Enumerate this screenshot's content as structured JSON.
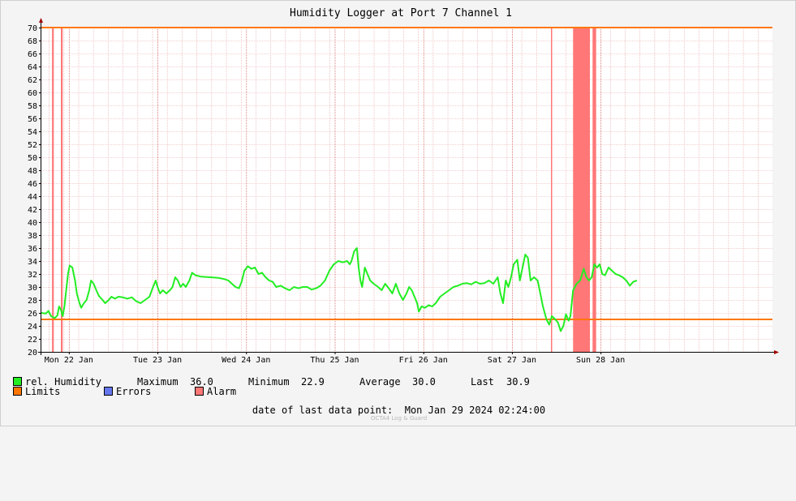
{
  "chart_data": {
    "type": "line",
    "title": "Humidity Logger at Port 7 Channel 1",
    "ylim": [
      20,
      70
    ],
    "y_ticks": [
      20,
      22,
      24,
      26,
      28,
      30,
      32,
      34,
      36,
      38,
      40,
      42,
      44,
      46,
      48,
      50,
      52,
      54,
      56,
      58,
      60,
      62,
      64,
      66,
      68,
      70
    ],
    "x_range_days": [
      0,
      8.25
    ],
    "x_ticks": [
      {
        "label": "Mon 22 Jan",
        "day": 0.31
      },
      {
        "label": "Tue 23 Jan",
        "day": 1.31
      },
      {
        "label": "Wed 24 Jan",
        "day": 2.31
      },
      {
        "label": "Thu 25 Jan",
        "day": 3.31
      },
      {
        "label": "Fri 26 Jan",
        "day": 4.31
      },
      {
        "label": "Sat 27 Jan",
        "day": 5.31
      },
      {
        "label": "Sun 28 Jan",
        "day": 6.31
      }
    ],
    "limits": {
      "upper": 70,
      "lower": 25
    },
    "alarm_bands": [
      [
        0.12,
        0.14
      ],
      [
        0.22,
        0.24
      ],
      [
        5.75,
        5.76
      ],
      [
        6.0,
        6.19
      ],
      [
        6.22,
        6.26
      ]
    ],
    "series": [
      {
        "name": "rel. Humidity",
        "color": "#22ee22",
        "points": [
          [
            0.0,
            26.0
          ],
          [
            0.05,
            25.9
          ],
          [
            0.08,
            26.3
          ],
          [
            0.11,
            25.5
          ],
          [
            0.15,
            25.2
          ],
          [
            0.18,
            25.6
          ],
          [
            0.2,
            27.0
          ],
          [
            0.22,
            26.5
          ],
          [
            0.24,
            25.5
          ],
          [
            0.26,
            27.0
          ],
          [
            0.28,
            29.5
          ],
          [
            0.3,
            32.0
          ],
          [
            0.32,
            33.3
          ],
          [
            0.35,
            33.0
          ],
          [
            0.38,
            31.0
          ],
          [
            0.4,
            29.0
          ],
          [
            0.43,
            27.5
          ],
          [
            0.45,
            26.8
          ],
          [
            0.48,
            27.5
          ],
          [
            0.51,
            28.0
          ],
          [
            0.54,
            29.5
          ],
          [
            0.56,
            31.0
          ],
          [
            0.59,
            30.5
          ],
          [
            0.62,
            29.5
          ],
          [
            0.65,
            28.6
          ],
          [
            0.69,
            28.0
          ],
          [
            0.72,
            27.5
          ],
          [
            0.76,
            28.0
          ],
          [
            0.79,
            28.5
          ],
          [
            0.83,
            28.2
          ],
          [
            0.87,
            28.5
          ],
          [
            0.92,
            28.4
          ],
          [
            0.97,
            28.2
          ],
          [
            1.02,
            28.4
          ],
          [
            1.07,
            27.8
          ],
          [
            1.12,
            27.5
          ],
          [
            1.17,
            28.0
          ],
          [
            1.22,
            28.5
          ],
          [
            1.26,
            30.0
          ],
          [
            1.29,
            31.0
          ],
          [
            1.31,
            30.0
          ],
          [
            1.34,
            29.0
          ],
          [
            1.37,
            29.5
          ],
          [
            1.41,
            29.0
          ],
          [
            1.45,
            29.5
          ],
          [
            1.48,
            30.0
          ],
          [
            1.51,
            31.5
          ],
          [
            1.54,
            31.0
          ],
          [
            1.57,
            30.0
          ],
          [
            1.6,
            30.5
          ],
          [
            1.63,
            30.0
          ],
          [
            1.67,
            31.0
          ],
          [
            1.7,
            32.2
          ],
          [
            1.74,
            31.8
          ],
          [
            1.8,
            31.6
          ],
          [
            1.9,
            31.5
          ],
          [
            2.0,
            31.4
          ],
          [
            2.07,
            31.2
          ],
          [
            2.11,
            31.0
          ],
          [
            2.15,
            30.5
          ],
          [
            2.19,
            30.0
          ],
          [
            2.23,
            29.8
          ],
          [
            2.26,
            30.8
          ],
          [
            2.29,
            32.5
          ],
          [
            2.33,
            33.2
          ],
          [
            2.37,
            32.8
          ],
          [
            2.41,
            33.0
          ],
          [
            2.45,
            32.0
          ],
          [
            2.49,
            32.2
          ],
          [
            2.53,
            31.5
          ],
          [
            2.57,
            31.0
          ],
          [
            2.61,
            30.8
          ],
          [
            2.65,
            30.0
          ],
          [
            2.7,
            30.2
          ],
          [
            2.75,
            29.8
          ],
          [
            2.8,
            29.5
          ],
          [
            2.85,
            30.0
          ],
          [
            2.9,
            29.8
          ],
          [
            2.95,
            30.0
          ],
          [
            3.0,
            30.0
          ],
          [
            3.05,
            29.6
          ],
          [
            3.1,
            29.8
          ],
          [
            3.15,
            30.2
          ],
          [
            3.2,
            31.0
          ],
          [
            3.25,
            32.5
          ],
          [
            3.3,
            33.5
          ],
          [
            3.35,
            34.0
          ],
          [
            3.4,
            33.8
          ],
          [
            3.45,
            34.0
          ],
          [
            3.48,
            33.5
          ],
          [
            3.5,
            34.0
          ],
          [
            3.53,
            35.5
          ],
          [
            3.56,
            36.0
          ],
          [
            3.58,
            33.0
          ],
          [
            3.6,
            31.0
          ],
          [
            3.62,
            30.0
          ],
          [
            3.65,
            33.0
          ],
          [
            3.68,
            32.0
          ],
          [
            3.71,
            31.0
          ],
          [
            3.75,
            30.5
          ],
          [
            3.8,
            30.0
          ],
          [
            3.84,
            29.5
          ],
          [
            3.88,
            30.5
          ],
          [
            3.92,
            29.8
          ],
          [
            3.96,
            29.0
          ],
          [
            4.0,
            30.5
          ],
          [
            4.04,
            29.0
          ],
          [
            4.08,
            28.0
          ],
          [
            4.12,
            29.0
          ],
          [
            4.15,
            30.0
          ],
          [
            4.18,
            29.5
          ],
          [
            4.21,
            28.5
          ],
          [
            4.24,
            27.5
          ],
          [
            4.26,
            26.2
          ],
          [
            4.29,
            27.0
          ],
          [
            4.33,
            26.8
          ],
          [
            4.37,
            27.2
          ],
          [
            4.41,
            27.0
          ],
          [
            4.45,
            27.5
          ],
          [
            4.5,
            28.5
          ],
          [
            4.55,
            29.0
          ],
          [
            4.6,
            29.5
          ],
          [
            4.65,
            30.0
          ],
          [
            4.7,
            30.2
          ],
          [
            4.75,
            30.5
          ],
          [
            4.8,
            30.6
          ],
          [
            4.85,
            30.4
          ],
          [
            4.9,
            30.8
          ],
          [
            4.95,
            30.5
          ],
          [
            5.0,
            30.6
          ],
          [
            5.05,
            31.0
          ],
          [
            5.1,
            30.5
          ],
          [
            5.15,
            31.5
          ],
          [
            5.18,
            29.0
          ],
          [
            5.21,
            27.5
          ],
          [
            5.24,
            31.0
          ],
          [
            5.27,
            30.0
          ],
          [
            5.3,
            31.5
          ],
          [
            5.33,
            33.5
          ],
          [
            5.37,
            34.2
          ],
          [
            5.4,
            31.0
          ],
          [
            5.43,
            33.0
          ],
          [
            5.46,
            35.0
          ],
          [
            5.49,
            34.5
          ],
          [
            5.52,
            31.0
          ],
          [
            5.56,
            31.5
          ],
          [
            5.6,
            31.0
          ],
          [
            5.63,
            29.0
          ],
          [
            5.66,
            27.0
          ],
          [
            5.68,
            26.0
          ],
          [
            5.7,
            25.0
          ],
          [
            5.73,
            24.2
          ],
          [
            5.76,
            25.5
          ],
          [
            5.8,
            25.0
          ],
          [
            5.83,
            24.5
          ],
          [
            5.86,
            23.2
          ],
          [
            5.89,
            24.0
          ],
          [
            5.92,
            25.8
          ],
          [
            5.95,
            24.8
          ],
          [
            5.97,
            25.5
          ],
          [
            6.0,
            29.5
          ],
          [
            6.04,
            30.5
          ],
          [
            6.08,
            31.0
          ],
          [
            6.12,
            32.8
          ],
          [
            6.15,
            31.5
          ],
          [
            6.18,
            31.0
          ],
          [
            6.21,
            31.5
          ],
          [
            6.24,
            33.5
          ],
          [
            6.27,
            33.0
          ],
          [
            6.3,
            33.5
          ],
          [
            6.33,
            32.0
          ],
          [
            6.36,
            31.8
          ],
          [
            6.4,
            33.0
          ],
          [
            6.44,
            32.5
          ],
          [
            6.48,
            32.0
          ],
          [
            6.52,
            31.8
          ],
          [
            6.56,
            31.5
          ],
          [
            6.6,
            31.0
          ],
          [
            6.64,
            30.2
          ],
          [
            6.68,
            30.8
          ],
          [
            6.72,
            31.0
          ]
        ]
      }
    ],
    "stats": {
      "label_max": "Maximum",
      "max": "36.0",
      "label_min": "Minimum",
      "min": "22.9",
      "label_avg": "Average",
      "avg": "30.0",
      "label_last": "Last",
      "last": "30.9"
    }
  },
  "legend": {
    "humidity": "rel. Humidity",
    "limits": "Limits",
    "errors": "Errors",
    "alarm": "Alarm"
  },
  "colors": {
    "humidity": "#22ee22",
    "limits": "#ff7700",
    "errors": "#6677ee",
    "alarm": "#ff7777"
  },
  "footer": "date of last data point:  Mon Jan 29 2024 02:24:00",
  "watermark": "OCTA4 Log & Guard"
}
